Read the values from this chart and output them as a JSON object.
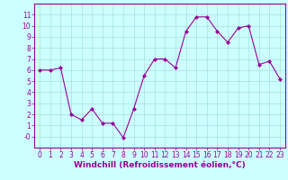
{
  "x": [
    0,
    1,
    2,
    3,
    4,
    5,
    6,
    7,
    8,
    9,
    10,
    11,
    12,
    13,
    14,
    15,
    16,
    17,
    18,
    19,
    20,
    21,
    22,
    23
  ],
  "y": [
    6.0,
    6.0,
    6.2,
    2.0,
    1.5,
    2.5,
    1.2,
    1.2,
    -0.1,
    2.5,
    5.5,
    7.0,
    7.0,
    6.2,
    9.5,
    10.8,
    10.8,
    9.5,
    8.5,
    9.8,
    10.0,
    6.5,
    6.8,
    5.2
  ],
  "line_color": "#990099",
  "marker": "D",
  "marker_size": 2,
  "background_color": "#ccffff",
  "grid_color": "#aadddd",
  "xlabel": "Windchill (Refroidissement éolien,°C)",
  "xlabel_color": "#990099",
  "tick_color": "#990099",
  "ylim": [
    -1,
    12
  ],
  "xlim": [
    -0.5,
    23.5
  ],
  "yticks": [
    0,
    1,
    2,
    3,
    4,
    5,
    6,
    7,
    8,
    9,
    10,
    11
  ],
  "ytick_labels": [
    "-0",
    "1",
    "2",
    "3",
    "4",
    "5",
    "6",
    "7",
    "8",
    "9",
    "10",
    "11"
  ],
  "xticks": [
    0,
    1,
    2,
    3,
    4,
    5,
    6,
    7,
    8,
    9,
    10,
    11,
    12,
    13,
    14,
    15,
    16,
    17,
    18,
    19,
    20,
    21,
    22,
    23
  ],
  "tick_fontsize": 5.5,
  "xlabel_fontsize": 6.5
}
